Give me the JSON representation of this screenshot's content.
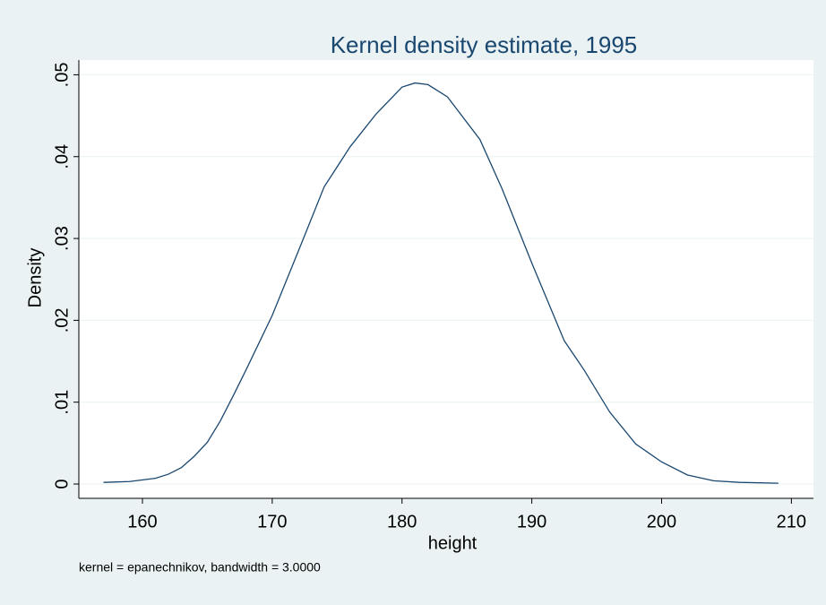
{
  "chart_data": {
    "type": "line",
    "title": "Kernel density estimate, 1995",
    "x_label": "height",
    "y_label": "Density",
    "note": "kernel = epanechnikov, bandwidth = 3.0000",
    "x": [
      157,
      159,
      161,
      162,
      163,
      164,
      165,
      166,
      167,
      168,
      170,
      172,
      174,
      176,
      178,
      180,
      181,
      182,
      183.5,
      186,
      187.7,
      190,
      192.5,
      194,
      196,
      198,
      200,
      202,
      204,
      206,
      209
    ],
    "series": [
      {
        "color": "#1a476f",
        "values": [
          0.0002,
          0.0003,
          0.0007,
          0.0012,
          0.002,
          0.0034,
          0.0051,
          0.0077,
          0.0108,
          0.014,
          0.0206,
          0.0284,
          0.0363,
          0.0412,
          0.0452,
          0.0485,
          0.049,
          0.0488,
          0.0473,
          0.0421,
          0.0361,
          0.027,
          0.0175,
          0.014,
          0.0088,
          0.0049,
          0.0027,
          0.0011,
          0.0004,
          0.0002,
          0.0001
        ]
      }
    ],
    "xlim": [
      155.1,
      211.7
    ],
    "ylim": [
      -0.00175,
      0.0518
    ],
    "xticks": [
      160,
      170,
      180,
      190,
      200,
      210
    ],
    "yticks": [
      0,
      {
        "value": 0.01,
        "label": ".01"
      },
      {
        "value": 0.02,
        "label": ".02"
      },
      {
        "value": 0.03,
        "label": ".03"
      },
      {
        "value": 0.04,
        "label": ".04"
      },
      {
        "value": 0.05,
        "label": ".05"
      }
    ],
    "grid": true
  }
}
